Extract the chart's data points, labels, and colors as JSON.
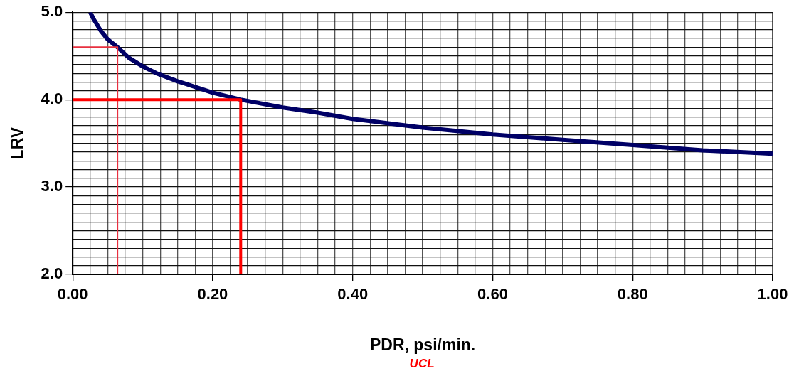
{
  "chart_data": {
    "type": "line",
    "xlabel": "PDR, psi/min.",
    "ylabel": "LRV",
    "annotations": [
      "UCL"
    ],
    "xlim": [
      0,
      1
    ],
    "ylim": [
      2,
      5
    ],
    "xticks": [
      {
        "value": 0,
        "label": "0.00"
      },
      {
        "value": 0.025,
        "label": null
      },
      {
        "value": 0.05,
        "label": null
      },
      {
        "value": 0.075,
        "label": null
      },
      {
        "value": 0.1,
        "label": null
      },
      {
        "value": 0.125,
        "label": null
      },
      {
        "value": 0.15,
        "label": null
      },
      {
        "value": 0.175,
        "label": null
      },
      {
        "value": 0.2,
        "label": "0.20"
      },
      {
        "value": 0.225,
        "label": null
      },
      {
        "value": 0.25,
        "label": null
      },
      {
        "value": 0.275,
        "label": null
      },
      {
        "value": 0.3,
        "label": null
      },
      {
        "value": 0.325,
        "label": null
      },
      {
        "value": 0.35,
        "label": null
      },
      {
        "value": 0.375,
        "label": null
      },
      {
        "value": 0.4,
        "label": "0.40"
      },
      {
        "value": 0.425,
        "label": null
      },
      {
        "value": 0.45,
        "label": null
      },
      {
        "value": 0.475,
        "label": null
      },
      {
        "value": 0.5,
        "label": null
      },
      {
        "value": 0.525,
        "label": null
      },
      {
        "value": 0.55,
        "label": null
      },
      {
        "value": 0.575,
        "label": null
      },
      {
        "value": 0.6,
        "label": "0.60"
      },
      {
        "value": 0.625,
        "label": null
      },
      {
        "value": 0.65,
        "label": null
      },
      {
        "value": 0.675,
        "label": null
      },
      {
        "value": 0.7,
        "label": null
      },
      {
        "value": 0.725,
        "label": null
      },
      {
        "value": 0.75,
        "label": null
      },
      {
        "value": 0.775,
        "label": null
      },
      {
        "value": 0.8,
        "label": "0.80"
      },
      {
        "value": 0.825,
        "label": null
      },
      {
        "value": 0.85,
        "label": null
      },
      {
        "value": 0.875,
        "label": null
      },
      {
        "value": 0.9,
        "label": null
      },
      {
        "value": 0.925,
        "label": null
      },
      {
        "value": 0.95,
        "label": null
      },
      {
        "value": 0.975,
        "label": null
      },
      {
        "value": 1,
        "label": "1.00"
      }
    ],
    "yticks": [
      {
        "value": 2,
        "label": "2.0"
      },
      {
        "value": 2.1,
        "label": null
      },
      {
        "value": 2.2,
        "label": null
      },
      {
        "value": 2.3,
        "label": null
      },
      {
        "value": 2.4,
        "label": null
      },
      {
        "value": 2.5,
        "label": null
      },
      {
        "value": 2.6,
        "label": null
      },
      {
        "value": 2.7,
        "label": null
      },
      {
        "value": 2.8,
        "label": null
      },
      {
        "value": 2.9,
        "label": null
      },
      {
        "value": 3,
        "label": "3.0"
      },
      {
        "value": 3.1,
        "label": null
      },
      {
        "value": 3.2,
        "label": null
      },
      {
        "value": 3.3,
        "label": null
      },
      {
        "value": 3.4,
        "label": null
      },
      {
        "value": 3.5,
        "label": null
      },
      {
        "value": 3.6,
        "label": null
      },
      {
        "value": 3.7,
        "label": null
      },
      {
        "value": 3.8,
        "label": null
      },
      {
        "value": 3.9,
        "label": null
      },
      {
        "value": 4,
        "label": "4.0"
      },
      {
        "value": 4.1,
        "label": null
      },
      {
        "value": 4.2,
        "label": null
      },
      {
        "value": 4.3,
        "label": null
      },
      {
        "value": 4.4,
        "label": null
      },
      {
        "value": 4.5,
        "label": null
      },
      {
        "value": 4.6,
        "label": null
      },
      {
        "value": 4.7,
        "label": null
      },
      {
        "value": 4.8,
        "label": null
      },
      {
        "value": 4.9,
        "label": null
      },
      {
        "value": 5,
        "label": "5.0"
      }
    ],
    "grid": true,
    "legend": false,
    "marker": "none",
    "line_style": "solid",
    "series": [
      {
        "color": "#000066",
        "x": [
          0.025,
          0.03,
          0.04,
          0.05,
          0.064,
          0.08,
          0.1,
          0.12,
          0.15,
          0.2,
          0.24,
          0.3,
          0.35,
          0.4,
          0.5,
          0.6,
          0.7,
          0.8,
          0.9,
          1.0
        ],
        "values": [
          5.0,
          4.92,
          4.79,
          4.69,
          4.6,
          4.48,
          4.38,
          4.3,
          4.21,
          4.08,
          4.0,
          3.91,
          3.85,
          3.78,
          3.68,
          3.6,
          3.54,
          3.48,
          3.42,
          3.38
        ]
      },
      {
        "color": "#e8303f",
        "x": [
          0,
          0.064,
          0.064
        ],
        "values": [
          4.6,
          4.6,
          2
        ]
      },
      {
        "color": "#ff0000",
        "x": [
          0,
          0.24,
          0.24
        ],
        "values": [
          4,
          4,
          2
        ]
      }
    ]
  }
}
